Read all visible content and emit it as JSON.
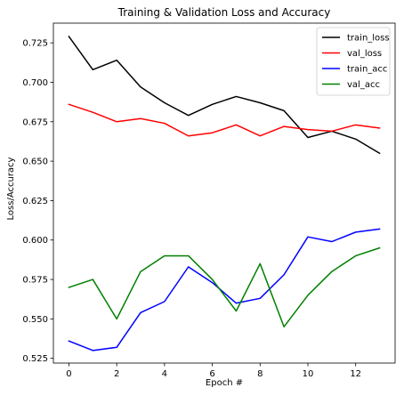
{
  "chart_data": {
    "type": "line",
    "title": "Training & Validation Loss and Accuracy",
    "xlabel": "Epoch #",
    "ylabel": "Loss/Accuracy",
    "x": [
      0,
      1,
      2,
      3,
      4,
      5,
      6,
      7,
      8,
      9,
      10,
      11,
      12,
      13
    ],
    "xlim": [
      -0.65,
      13.65
    ],
    "ylim": [
      0.522,
      0.7375
    ],
    "xticks": [
      0,
      2,
      4,
      6,
      8,
      10,
      12
    ],
    "yticks": [
      0.525,
      0.55,
      0.575,
      0.6,
      0.625,
      0.65,
      0.675,
      0.7,
      0.725
    ],
    "xtick_labels": [
      "0",
      "2",
      "4",
      "6",
      "8",
      "10",
      "12"
    ],
    "ytick_labels": [
      "0.525",
      "0.550",
      "0.575",
      "0.600",
      "0.625",
      "0.650",
      "0.675",
      "0.700",
      "0.725"
    ],
    "grid": false,
    "legend_position": "top-right",
    "series": [
      {
        "name": "train_loss",
        "color": "#000000",
        "values": [
          0.729,
          0.708,
          0.714,
          0.697,
          0.687,
          0.679,
          0.686,
          0.691,
          0.687,
          0.682,
          0.665,
          0.669,
          0.664,
          0.655
        ]
      },
      {
        "name": "val_loss",
        "color": "#ff0000",
        "values": [
          0.686,
          0.681,
          0.675,
          0.677,
          0.674,
          0.666,
          0.668,
          0.673,
          0.666,
          0.672,
          0.67,
          0.669,
          0.673,
          0.671
        ]
      },
      {
        "name": "train_acc",
        "color": "#0000ff",
        "values": [
          0.536,
          0.53,
          0.532,
          0.554,
          0.561,
          0.583,
          0.573,
          0.56,
          0.563,
          0.578,
          0.602,
          0.599,
          0.605,
          0.607
        ]
      },
      {
        "name": "val_acc",
        "color": "#008000",
        "values": [
          0.57,
          0.575,
          0.55,
          0.58,
          0.59,
          0.59,
          0.575,
          0.555,
          0.585,
          0.545,
          0.565,
          0.58,
          0.59,
          0.595
        ]
      }
    ]
  }
}
